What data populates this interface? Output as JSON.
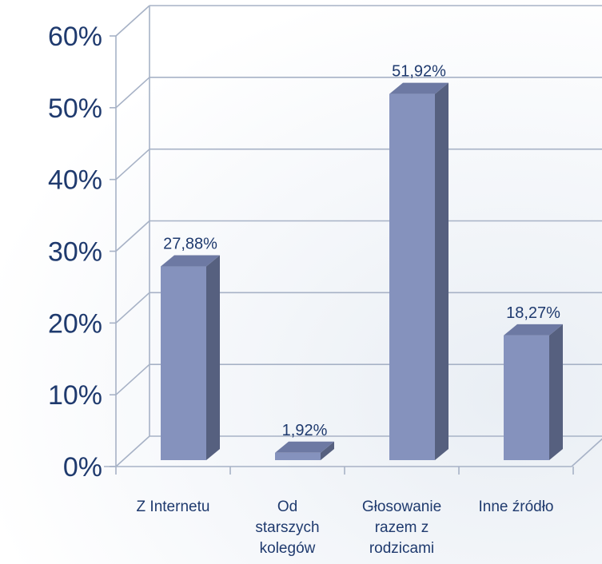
{
  "chart_data": {
    "type": "bar",
    "categories": [
      [
        "Z Internetu"
      ],
      [
        "Od",
        "starszych",
        "kolegów"
      ],
      [
        "Głosowanie",
        "razem z",
        "rodzicami"
      ],
      [
        "Inne źródło"
      ]
    ],
    "values": [
      27.88,
      1.92,
      51.92,
      18.27
    ],
    "data_labels": [
      "27,88%",
      "1,92%",
      "51,92%",
      "18,27%"
    ],
    "y_ticks": [
      "0%",
      "10%",
      "20%",
      "30%",
      "40%",
      "50%",
      "60%"
    ],
    "ylim": [
      0,
      60
    ],
    "grid": true,
    "legend": "none",
    "style": "3d-column",
    "colors": {
      "bar_front": "#8592bd",
      "bar_side": "#56607f",
      "bar_top": "#6d79a3",
      "grid": "#a7b2c6",
      "text": "#1f3a6e"
    }
  }
}
